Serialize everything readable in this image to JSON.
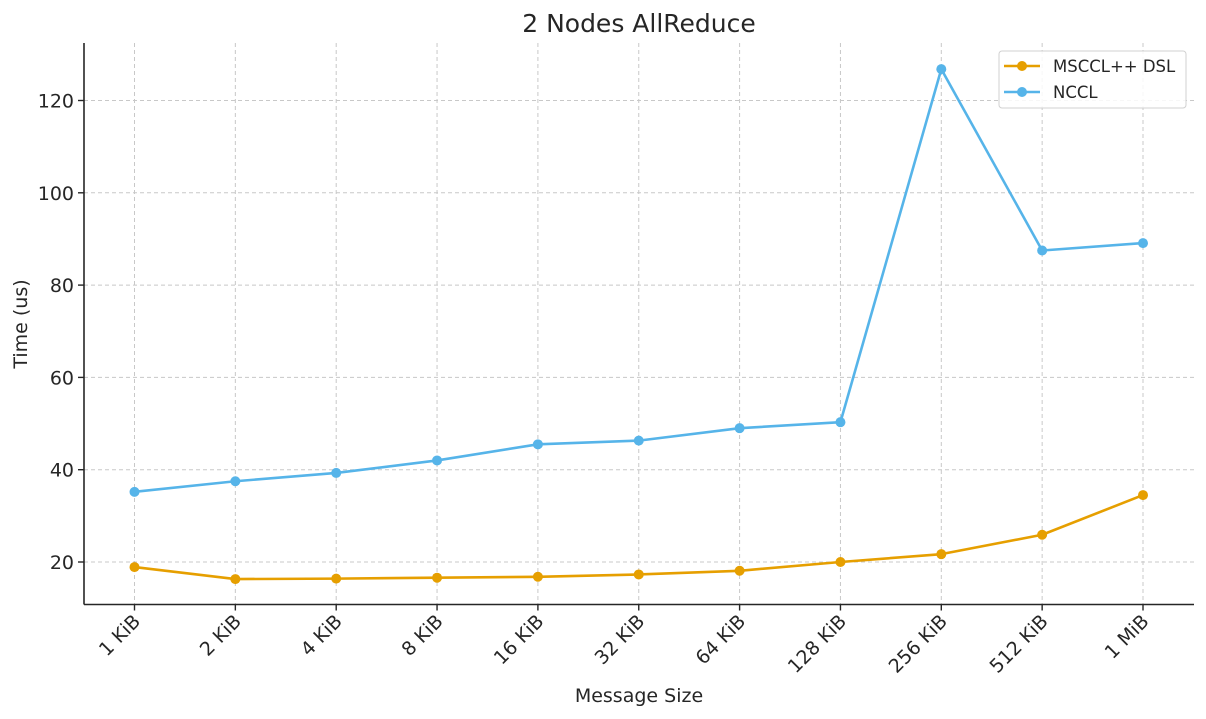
{
  "chart_data": {
    "type": "line",
    "title": "2 Nodes AllReduce",
    "xlabel": "Message Size",
    "ylabel": "Time (us)",
    "categories": [
      "1 KiB",
      "2 KiB",
      "4 KiB",
      "8 KiB",
      "16 KiB",
      "32 KiB",
      "64 KiB",
      "128 KiB",
      "256 KiB",
      "512 KiB",
      "1 MiB"
    ],
    "series": [
      {
        "name": "MSCCL++ DSL",
        "color": "#E69F00",
        "marker": "circle",
        "values": [
          18.9,
          16.3,
          16.4,
          16.6,
          16.8,
          17.3,
          18.1,
          20.0,
          21.7,
          25.9,
          34.5
        ]
      },
      {
        "name": "NCCL",
        "color": "#56B4E9",
        "marker": "circle",
        "values": [
          35.2,
          37.5,
          39.3,
          42.0,
          45.5,
          46.3,
          49.0,
          50.3,
          126.8,
          87.5,
          89.1
        ]
      }
    ],
    "yticks": [
      20,
      40,
      60,
      80,
      100,
      120
    ],
    "ylim": [
      10.6,
      132.0
    ],
    "grid": true,
    "legend_position": "upper right",
    "xtick_rotation": 45
  }
}
